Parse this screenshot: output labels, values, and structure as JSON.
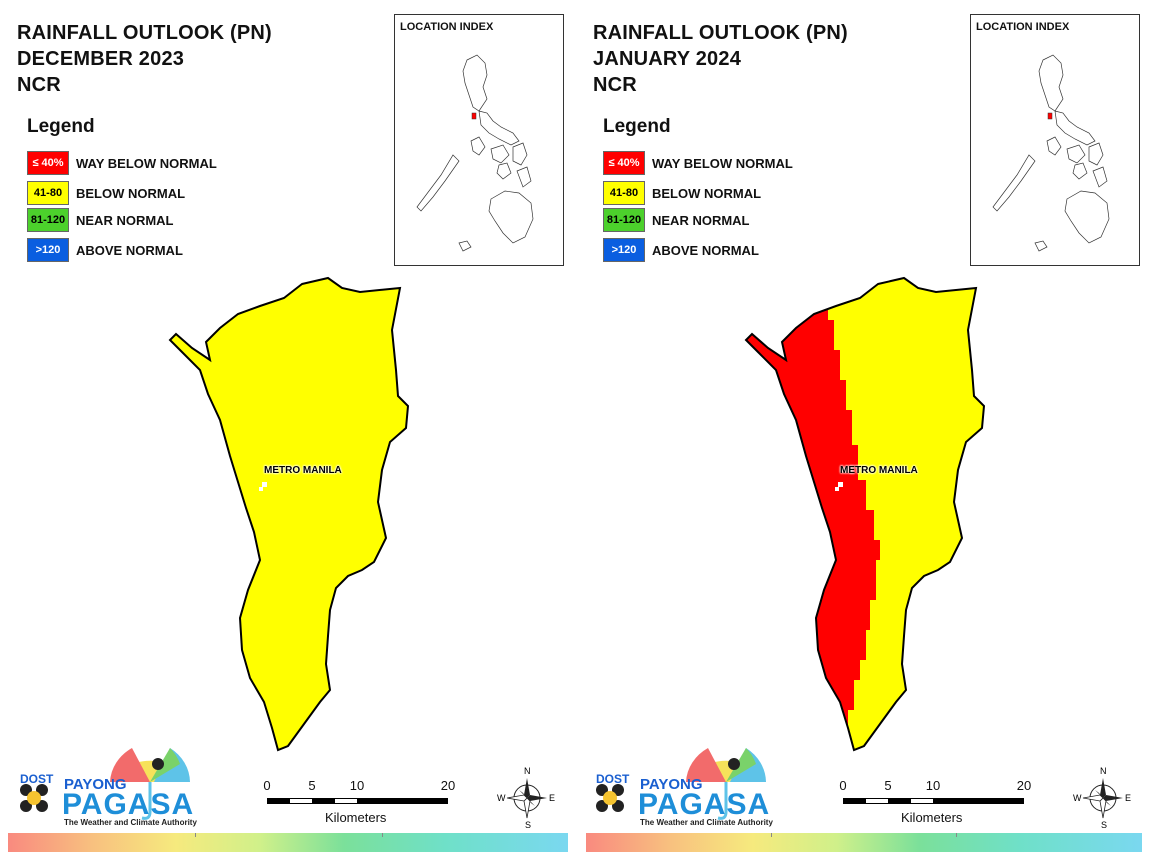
{
  "colors": {
    "way_below": "#ff0000",
    "below": "#ffff00",
    "near": "#4cd12c",
    "above": "#0a5ee0"
  },
  "panels": [
    {
      "title": [
        "RAINFALL OUTLOOK (PN)",
        "DECEMBER 2023",
        "NCR"
      ],
      "legend": {
        "heading": "Legend",
        "items": [
          {
            "code": "≤ 40%",
            "label": "WAY BELOW NORMAL",
            "color": "#ff0000",
            "text": "#ffffff"
          },
          {
            "code": "41-80",
            "label": "BELOW NORMAL",
            "color": "#ffff00",
            "text": "#000000"
          },
          {
            "code": "81-120",
            "label": "NEAR NORMAL",
            "color": "#4cd12c",
            "text": "#000000"
          },
          {
            "code": ">120",
            "label": "ABOVE NORMAL",
            "color": "#0a5ee0",
            "text": "#ffffff"
          }
        ]
      },
      "location_index": "LOCATION INDEX",
      "region_label": "METRO MANILA",
      "map_fill": "below_only",
      "logo": {
        "dost": "DOST",
        "payong": "PAYONG",
        "pagasa": "PAGASA",
        "tagline": "The Weather and Climate Authority"
      },
      "scale": {
        "ticks": [
          "0",
          "5",
          "10",
          "20"
        ],
        "caption": "Kilometers"
      },
      "compass": {
        "n": "N",
        "s": "S",
        "e": "E",
        "w": "W"
      }
    },
    {
      "title": [
        "RAINFALL OUTLOOK (PN)",
        "JANUARY 2024",
        "NCR"
      ],
      "legend": {
        "heading": "Legend",
        "items": [
          {
            "code": "≤ 40%",
            "label": "WAY BELOW NORMAL",
            "color": "#ff0000",
            "text": "#ffffff"
          },
          {
            "code": "41-80",
            "label": "BELOW NORMAL",
            "color": "#ffff00",
            "text": "#000000"
          },
          {
            "code": "81-120",
            "label": "NEAR NORMAL",
            "color": "#4cd12c",
            "text": "#000000"
          },
          {
            "code": ">120",
            "label": "ABOVE NORMAL",
            "color": "#0a5ee0",
            "text": "#ffffff"
          }
        ]
      },
      "location_index": "LOCATION INDEX",
      "region_label": "METRO MANILA",
      "map_fill": "west_way_below_east_below",
      "logo": {
        "dost": "DOST",
        "payong": "PAYONG",
        "pagasa": "PAGASA",
        "tagline": "The Weather and Climate Authority"
      },
      "scale": {
        "ticks": [
          "0",
          "5",
          "10",
          "20"
        ],
        "caption": "Kilometers"
      },
      "compass": {
        "n": "N",
        "s": "S",
        "e": "E",
        "w": "W"
      }
    }
  ]
}
